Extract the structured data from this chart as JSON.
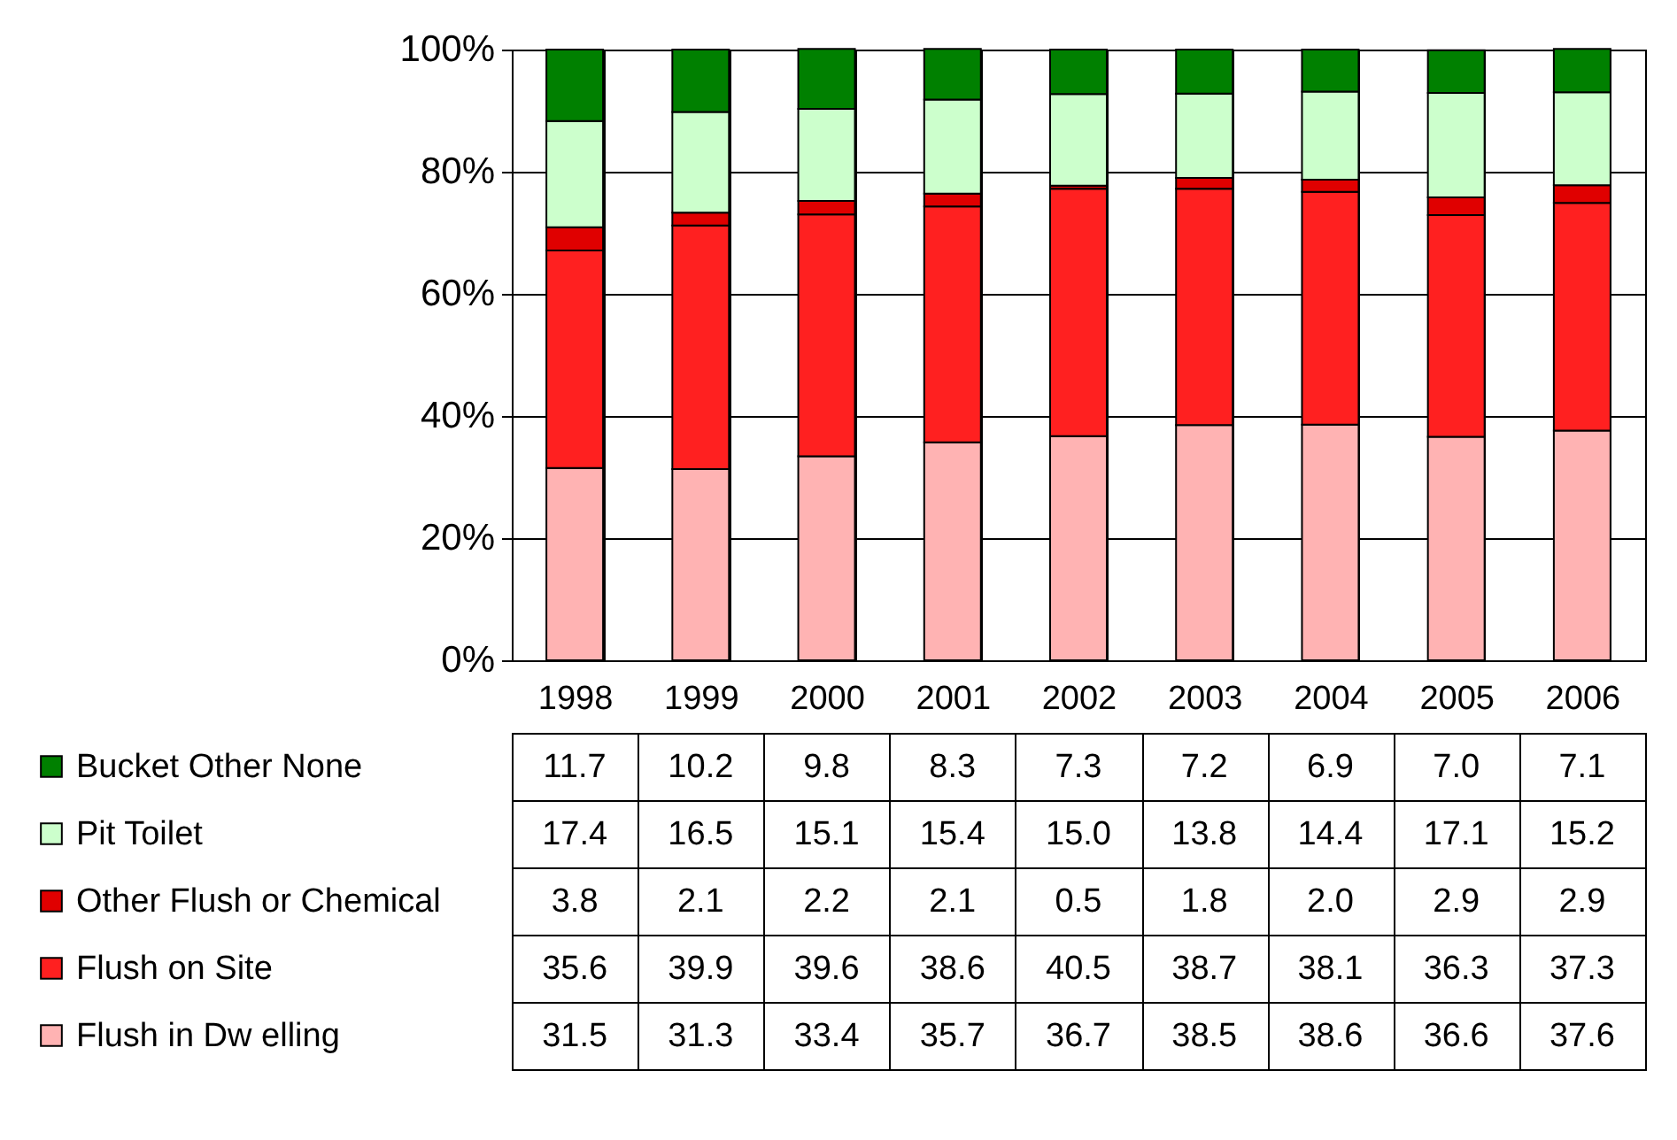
{
  "chart_data": {
    "type": "bar",
    "stacked": true,
    "categories": [
      "1998",
      "1999",
      "2000",
      "2001",
      "2002",
      "2003",
      "2004",
      "2005",
      "2006"
    ],
    "series": [
      {
        "name": "Flush in Dw elling",
        "color": "#ffb3b3",
        "values": [
          31.5,
          31.3,
          33.4,
          35.7,
          36.7,
          38.5,
          38.6,
          36.6,
          37.6
        ],
        "value_labels": [
          "31.5",
          "31.3",
          "33.4",
          "35.7",
          "36.7",
          "38.5",
          "38.6",
          "36.6",
          "37.6"
        ]
      },
      {
        "name": "Flush on Site",
        "color": "#ff2020",
        "values": [
          35.6,
          39.9,
          39.6,
          38.6,
          40.5,
          38.7,
          38.1,
          36.3,
          37.3
        ],
        "value_labels": [
          "35.6",
          "39.9",
          "39.6",
          "38.6",
          "40.5",
          "38.7",
          "38.1",
          "36.3",
          "37.3"
        ]
      },
      {
        "name": "Other Flush or Chemical",
        "color": "#e00000",
        "values": [
          3.8,
          2.1,
          2.2,
          2.1,
          0.5,
          1.8,
          2.0,
          2.9,
          2.9
        ],
        "value_labels": [
          "3.8",
          "2.1",
          "2.2",
          "2.1",
          "0.5",
          "1.8",
          "2.0",
          "2.9",
          "2.9"
        ]
      },
      {
        "name": "Pit Toilet",
        "color": "#ccffcc",
        "values": [
          17.4,
          16.5,
          15.1,
          15.4,
          15.0,
          13.8,
          14.4,
          17.1,
          15.2
        ],
        "value_labels": [
          "17.4",
          "16.5",
          "15.1",
          "15.4",
          "15.0",
          "13.8",
          "14.4",
          "17.1",
          "15.2"
        ]
      },
      {
        "name": "Bucket Other None",
        "color": "#008000",
        "values": [
          11.7,
          10.2,
          9.8,
          8.3,
          7.3,
          7.2,
          6.9,
          7.0,
          7.1
        ],
        "value_labels": [
          "11.7",
          "10.2",
          "9.8",
          "8.3",
          "7.3",
          "7.2",
          "6.9",
          "7.0",
          "7.1"
        ]
      }
    ],
    "ylim": [
      0,
      100
    ],
    "yticks": [
      {
        "value": 0,
        "label": "0%"
      },
      {
        "value": 20,
        "label": "20%"
      },
      {
        "value": 40,
        "label": "40%"
      },
      {
        "value": 60,
        "label": "60%"
      },
      {
        "value": 80,
        "label": "80%"
      },
      {
        "value": 100,
        "label": "100%"
      }
    ],
    "grid": true,
    "legend": "bottom left"
  }
}
